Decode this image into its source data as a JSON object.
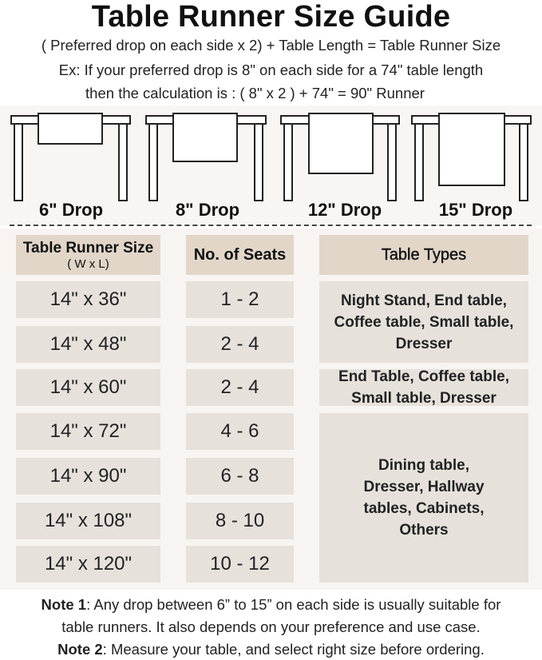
{
  "title": "Table Runner Size Guide",
  "subtitle_lines": [
    "( Preferred drop on each side x 2) + Table Length = Table Runner Size",
    "Ex: If your preferred drop is 8\" on each side for a 74\" table length",
    "then the calculation is : ( 8\" x 2 ) + 74\" = 90\" Runner"
  ],
  "drops": [
    "6\" Drop",
    "8\" Drop",
    "12\" Drop",
    "15\" Drop"
  ],
  "table": {
    "headers": {
      "size": "Table Runner Size",
      "size_sub": "( W x L)",
      "seats": "No. of Seats",
      "types": "Table Types"
    },
    "rows": [
      {
        "size": "14\" x 36\"",
        "seats": "1 - 2"
      },
      {
        "size": "14\" x 48\"",
        "seats": "2 - 4"
      },
      {
        "size": "14\" x 60\"",
        "seats": "2 - 4"
      },
      {
        "size": "14\" x 72\"",
        "seats": "4 - 6"
      },
      {
        "size": "14\" x 90\"",
        "seats": "6 - 8"
      },
      {
        "size": "14\" x 108\"",
        "seats": "8 - 10"
      },
      {
        "size": "14\" x 120\"",
        "seats": "10 - 12"
      }
    ],
    "types": [
      "Night Stand, End table, Coffee table, Small table, Dresser",
      "End Table, Coffee table, Small table, Dresser",
      "Dining table, Dresser, Hallway tables, Cabinets, Others"
    ]
  },
  "notes": [
    {
      "label": "Note 1",
      "text": ": Any drop between 6” to 15” on each side is usually suitable for",
      "text2": "table runners. It also depends on your preference and use case."
    },
    {
      "label": "Note 2",
      "text": ": Measure your table, and select right size before ordering."
    }
  ],
  "colors": {
    "header_cell": "#e1d6c8",
    "body_cell": "#e7e1dc",
    "panel": "#f7f4f1"
  }
}
